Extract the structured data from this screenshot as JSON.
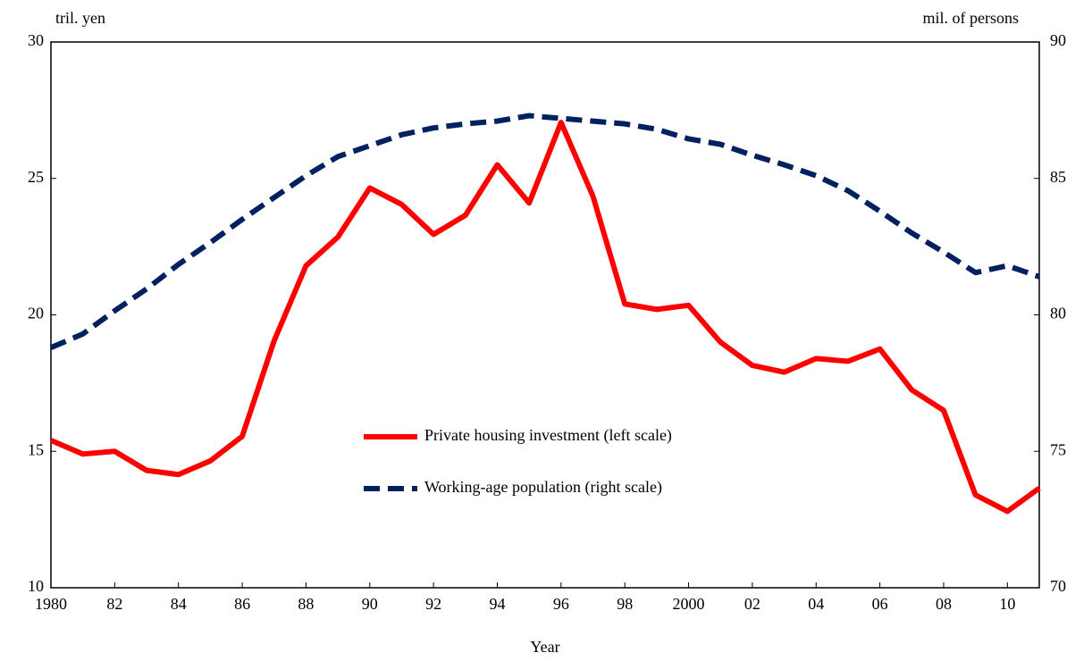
{
  "chart_data": {
    "type": "line",
    "y_label": "tril. yen",
    "y2_label": "mil. of persons",
    "x_label": "Year",
    "x": [
      1980,
      1981,
      1982,
      1983,
      1984,
      1985,
      1986,
      1987,
      1988,
      1989,
      1990,
      1991,
      1992,
      1993,
      1994,
      1995,
      1996,
      1997,
      1998,
      1999,
      2000,
      2001,
      2002,
      2003,
      2004,
      2005,
      2006,
      2007,
      2008,
      2009,
      2010,
      2011
    ],
    "xlim": [
      1980,
      2011
    ],
    "xticks": [
      1980,
      {
        "value": 1982,
        "label": "82"
      },
      {
        "value": 1984,
        "label": "84"
      },
      {
        "value": 1986,
        "label": "86"
      },
      {
        "value": 1988,
        "label": "88"
      },
      {
        "value": 1990,
        "label": "90"
      },
      {
        "value": 1992,
        "label": "92"
      },
      {
        "value": 1994,
        "label": "94"
      },
      {
        "value": 1996,
        "label": "96"
      },
      {
        "value": 1998,
        "label": "98"
      },
      2000,
      {
        "value": 2002,
        "label": "02"
      },
      {
        "value": 2004,
        "label": "04"
      },
      {
        "value": 2006,
        "label": "06"
      },
      {
        "value": 2008,
        "label": "08"
      },
      {
        "value": 2010,
        "label": "10"
      }
    ],
    "ylim": [
      10,
      30
    ],
    "yticks": [
      10,
      15,
      20,
      25,
      30
    ],
    "y2lim": [
      70,
      90
    ],
    "y2ticks": [
      70,
      75,
      80,
      85,
      90
    ],
    "series": [
      {
        "name": "Private housing investment (left scale)",
        "color": "#ff0000",
        "dash": false,
        "values": [
          15.4,
          14.9,
          15.0,
          14.3,
          14.15,
          14.65,
          15.55,
          19.05,
          21.8,
          22.85,
          24.65,
          24.05,
          22.95,
          23.65,
          25.5,
          24.1,
          27.05,
          24.35,
          20.4,
          20.2,
          20.35,
          19.0,
          18.15,
          17.9,
          18.4,
          18.3,
          18.75,
          17.25,
          16.5,
          13.4,
          12.8,
          13.65
        ]
      },
      {
        "name": "Working-age population (right scale)",
        "color": "#002060",
        "dash": true,
        "axis": "y2",
        "values": [
          78.8,
          79.3,
          80.15,
          80.95,
          81.85,
          82.65,
          83.5,
          84.3,
          85.1,
          85.8,
          86.2,
          86.6,
          86.85,
          87.0,
          87.1,
          87.3,
          87.2,
          87.1,
          87.0,
          86.8,
          86.45,
          86.25,
          85.85,
          85.5,
          85.1,
          84.55,
          83.8,
          83.0,
          82.3,
          81.55,
          81.8,
          81.4
        ]
      }
    ]
  }
}
